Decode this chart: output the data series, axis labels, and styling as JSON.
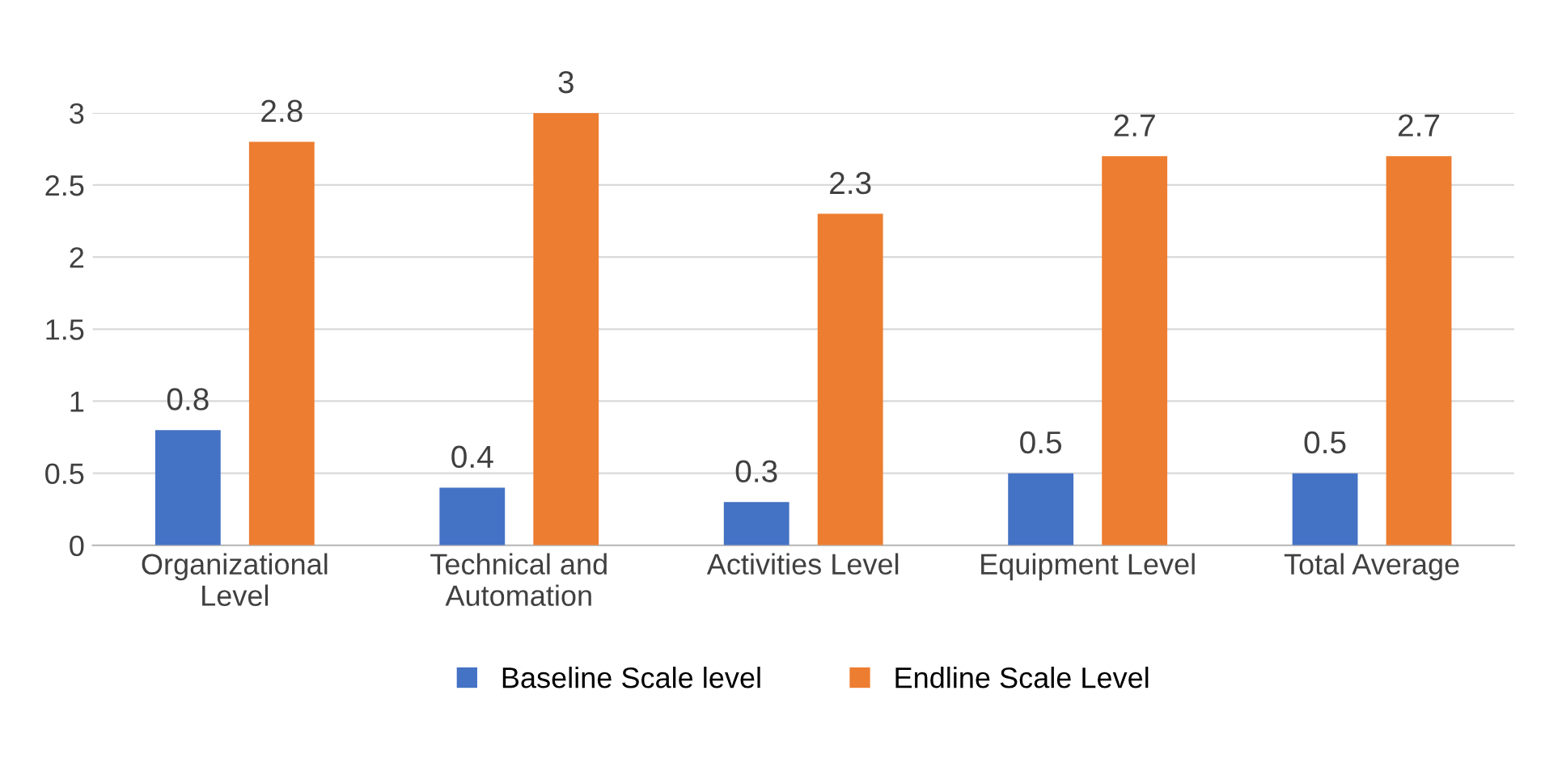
{
  "chart_data": {
    "type": "bar",
    "categories": [
      "Organizational\nLevel",
      "Technical and\nAutomation",
      "Activities Level",
      "Equipment Level",
      "Total Average"
    ],
    "series": [
      {
        "name": "Baseline Scale level",
        "color": "#4472c4",
        "values": [
          0.8,
          0.4,
          0.3,
          0.5,
          0.5
        ]
      },
      {
        "name": "Endline Scale Level",
        "color": "#ed7d31",
        "values": [
          2.8,
          3,
          2.3,
          2.7,
          2.7
        ]
      }
    ],
    "ylim": [
      0,
      3
    ],
    "yticks": [
      0,
      0.5,
      1,
      1.5,
      2,
      2.5,
      3
    ],
    "grid": "y",
    "legend": "bottom",
    "data_labels": true
  }
}
